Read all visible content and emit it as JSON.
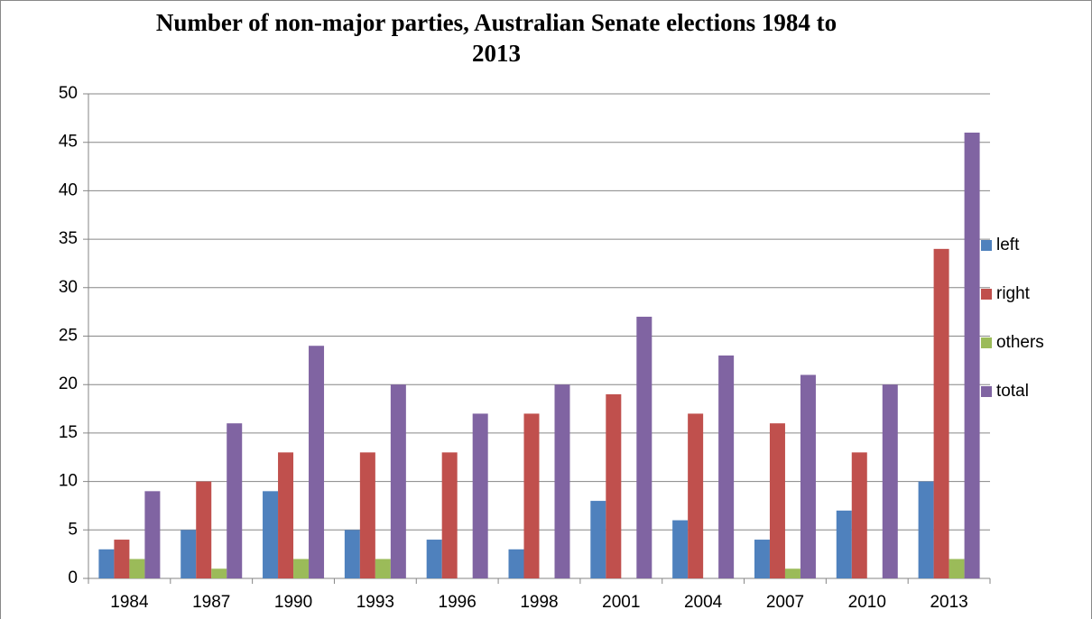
{
  "chart_data": {
    "type": "bar",
    "title": "Number of non-major parties, Australian Senate elections 1984 to 2013",
    "categories": [
      "1984",
      "1987",
      "1990",
      "1993",
      "1996",
      "1998",
      "2001",
      "2004",
      "2007",
      "2010",
      "2013"
    ],
    "series": [
      {
        "name": "left",
        "color": "#4f81bd",
        "values": [
          3,
          5,
          9,
          5,
          4,
          3,
          8,
          6,
          4,
          7,
          10
        ]
      },
      {
        "name": "right",
        "color": "#c0504d",
        "values": [
          4,
          10,
          13,
          13,
          13,
          17,
          19,
          17,
          16,
          13,
          34
        ]
      },
      {
        "name": "others",
        "color": "#9bbb59",
        "values": [
          2,
          1,
          2,
          2,
          0,
          0,
          0,
          0,
          1,
          0,
          2
        ]
      },
      {
        "name": "total",
        "color": "#8064a2",
        "values": [
          9,
          16,
          24,
          20,
          17,
          20,
          27,
          23,
          21,
          20,
          46
        ]
      }
    ],
    "ylim": [
      0,
      50
    ],
    "yticks": [
      0,
      5,
      10,
      15,
      20,
      25,
      30,
      35,
      40,
      45,
      50
    ],
    "grid": true,
    "legend": "right"
  }
}
